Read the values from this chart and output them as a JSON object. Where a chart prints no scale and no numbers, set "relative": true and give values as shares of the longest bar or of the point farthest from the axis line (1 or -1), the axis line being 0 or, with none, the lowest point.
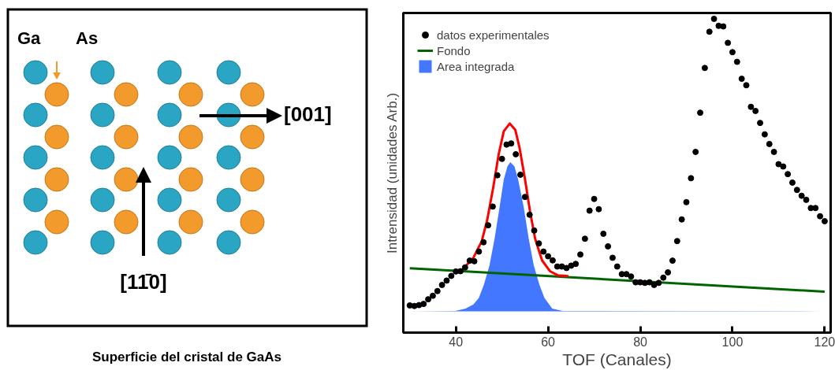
{
  "chart_data": [
    {
      "type": "other",
      "title": "Superficie del cristal de GaAs",
      "annotations": [
        "Ga",
        "As",
        "[001]",
        "[11̄0]"
      ]
    },
    {
      "type": "scatter",
      "xlabel": "TOF (Canales)",
      "ylabel": "Intrensidad (unidades Arb.)",
      "relative": true,
      "xlim": [
        28.6,
        121.3
      ],
      "xticks": [
        40,
        60,
        80,
        100,
        120
      ],
      "legend": "top left",
      "series": [
        {
          "name": "datos experimentales",
          "type": "scatter",
          "marker": "circle",
          "color": "#000000",
          "x": [
            30,
            31,
            32,
            33,
            34,
            35,
            36,
            37,
            38,
            39,
            40,
            41,
            42,
            43,
            44,
            45,
            46,
            47,
            48,
            49,
            50,
            51,
            52,
            53,
            54,
            55,
            56,
            57,
            58,
            59,
            60,
            61,
            62,
            63,
            64,
            65,
            66,
            67,
            68,
            69,
            70,
            71,
            72,
            73,
            74,
            75,
            76,
            77,
            78,
            79,
            80,
            81,
            82,
            83,
            84,
            85,
            86,
            87,
            88,
            89,
            90,
            91,
            92,
            93,
            94,
            95,
            96,
            97,
            98,
            99,
            100,
            101,
            102,
            103,
            104,
            105,
            106,
            107,
            108,
            109,
            110,
            111,
            112,
            113,
            114,
            115,
            116,
            117,
            118,
            119,
            120
          ],
          "values": [
            0.02,
            0.018,
            0.021,
            0.025,
            0.041,
            0.053,
            0.069,
            0.09,
            0.105,
            0.121,
            0.136,
            0.137,
            0.15,
            0.173,
            0.171,
            0.204,
            0.236,
            0.294,
            0.358,
            0.465,
            0.521,
            0.57,
            0.574,
            0.537,
            0.467,
            0.391,
            0.33,
            0.276,
            0.232,
            0.204,
            0.188,
            0.174,
            0.153,
            0.153,
            0.148,
            0.156,
            0.162,
            0.194,
            0.248,
            0.344,
            0.384,
            0.349,
            0.265,
            0.222,
            0.183,
            0.153,
            0.127,
            0.127,
            0.119,
            0.099,
            0.099,
            0.097,
            0.099,
            0.09,
            0.097,
            0.115,
            0.133,
            0.173,
            0.24,
            0.314,
            0.373,
            0.455,
            0.545,
            0.679,
            0.832,
            0.956,
            1.0,
            0.976,
            0.974,
            0.918,
            0.886,
            0.853,
            0.795,
            0.773,
            0.699,
            0.685,
            0.644,
            0.605,
            0.572,
            0.545,
            0.503,
            0.495,
            0.469,
            0.44,
            0.415,
            0.395,
            0.381,
            0.353,
            0.353,
            0.325,
            0.308
          ]
        },
        {
          "name": "Fondo",
          "type": "line",
          "color": "#006400",
          "x": [
            30,
            120
          ],
          "values": [
            0.147,
            0.067
          ]
        },
        {
          "type": "line",
          "color": "#ff0000",
          "x": [
            40.8,
            41.8,
            43.8,
            45.6,
            46.8,
            48.1,
            49.3,
            50.4,
            51.7,
            52.9,
            53.8,
            55.0,
            56.1,
            57.2,
            58.7,
            60.4,
            62.1,
            64.4
          ],
          "values": [
            0.133,
            0.149,
            0.183,
            0.239,
            0.312,
            0.423,
            0.538,
            0.616,
            0.642,
            0.62,
            0.56,
            0.451,
            0.34,
            0.248,
            0.174,
            0.137,
            0.123,
            0.12
          ]
        },
        {
          "name": "Area integrada",
          "type": "area",
          "color": "#4477ff",
          "x": [
            30,
            39.9,
            42.1,
            43.8,
            45.0,
            46.1,
            47.3,
            48.4,
            49.5,
            50.4,
            51.2,
            51.8,
            52.7,
            53.5,
            54.7,
            55.8,
            56.9,
            58.1,
            59.2,
            60.9,
            63.2,
            120
          ],
          "values": [
            0,
            0.001,
            0.009,
            0.023,
            0.046,
            0.092,
            0.157,
            0.249,
            0.358,
            0.451,
            0.496,
            0.51,
            0.496,
            0.451,
            0.358,
            0.249,
            0.157,
            0.092,
            0.046,
            0.009,
            0.001,
            0
          ]
        }
      ]
    }
  ]
}
